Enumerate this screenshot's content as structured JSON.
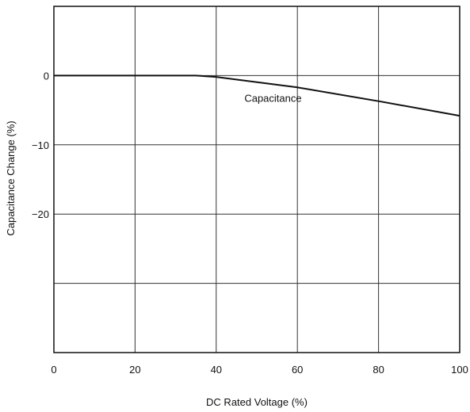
{
  "chart_data": {
    "type": "line",
    "title": "",
    "xlabel": "DC Rated Voltage (%)",
    "ylabel": "Capacitance Change (%)",
    "xlim": [
      0,
      100
    ],
    "ylim": [
      -40,
      10
    ],
    "x_ticks": [
      0,
      20,
      40,
      60,
      80,
      100
    ],
    "x_tick_labels": [
      "0",
      "20",
      "40",
      "60",
      "80",
      "100"
    ],
    "y_ticks": [
      0,
      -10,
      -20
    ],
    "y_tick_labels": [
      "0",
      "−10",
      "−20"
    ],
    "x_gridlines": [
      20,
      40,
      60,
      80
    ],
    "y_gridlines": [
      0,
      -10,
      -20,
      -30
    ],
    "grid": true,
    "legend": "none",
    "series": [
      {
        "x": [
          0,
          35,
          40,
          60,
          80,
          100
        ],
        "y": [
          0,
          0,
          -0.2,
          -1.7,
          -3.7,
          -5.8
        ]
      }
    ],
    "annotations": [
      {
        "text": "Capacitance",
        "x": 54,
        "y": -3.8
      }
    ],
    "colors": {
      "line": "#111111",
      "grid": "#333333",
      "axis": "#111111"
    }
  }
}
